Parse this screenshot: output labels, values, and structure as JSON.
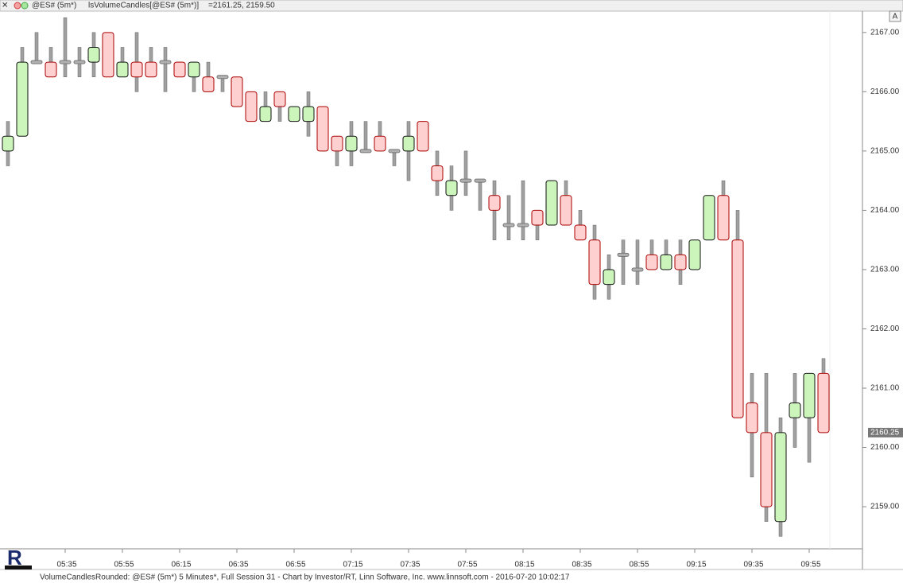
{
  "header": {
    "symbol": "@ES# (5m*)",
    "study": "lsVolumeCandles[@ES# (5m*)]",
    "values": "=2161.25, 2159.50",
    "button": "A"
  },
  "footer": "VolumeCandlesRounded: @ES# (5m*) 5 Minutes*, Full Session 31 - Chart by Investor/RT, Linn Software, Inc. www.linnsoft.com - 2016-07-20 10:02:17",
  "chart_data": {
    "type": "candlestick",
    "categories": [
      null,
      null,
      null,
      null,
      "05:35",
      null,
      null,
      null,
      "05:55",
      null,
      null,
      null,
      "06:15",
      null,
      null,
      null,
      "06:35",
      null,
      null,
      null,
      "06:55",
      null,
      null,
      null,
      "07:15",
      null,
      null,
      null,
      "07:35",
      null,
      null,
      null,
      "07:55",
      null,
      null,
      null,
      "08:15",
      null,
      null,
      null,
      "08:35",
      null,
      null,
      null,
      "08:55",
      null,
      null,
      null,
      "09:15",
      null,
      null,
      null,
      "09:35",
      null,
      null,
      null,
      "09:55",
      null
    ],
    "open": [
      2165,
      2165.25,
      2166.5,
      2166.5,
      2166.5,
      2166.5,
      2166.5,
      2167,
      2166.25,
      2166.5,
      2166.5,
      2166.5,
      2166.5,
      2166.25,
      2166.25,
      2166.25,
      2166.25,
      2166,
      2165.5,
      2166,
      2165.5,
      2165.5,
      2165.75,
      2165.25,
      2165,
      2165,
      2165.25,
      2165,
      2165,
      2165.5,
      2164.75,
      2164.25,
      2164.5,
      2164.5,
      2164.25,
      2163.75,
      2163.75,
      2164,
      2163.75,
      2164.25,
      2163.75,
      2163.5,
      2162.75,
      2163.25,
      2163,
      2163.25,
      2163,
      2163.25,
      2163,
      2163.5,
      2164.25,
      2163.5,
      2160.75,
      2160.25,
      2158.75,
      2160.5,
      2160.5,
      2161.25
    ],
    "high": [
      2165.5,
      2166.75,
      2167,
      2166.75,
      2167.25,
      2166.75,
      2167,
      2167,
      2166.75,
      2167,
      2166.75,
      2166.75,
      2166.5,
      2166.5,
      2166.5,
      2166.25,
      2166.25,
      2166,
      2166,
      2166,
      2165.75,
      2166,
      2165.75,
      2165.25,
      2165.5,
      2165.5,
      2165.5,
      2165,
      2165.5,
      2165.5,
      2165,
      2164.75,
      2165,
      2164.5,
      2164.5,
      2164.25,
      2164.5,
      2164,
      2164.5,
      2164.5,
      2164,
      2163.75,
      2163.25,
      2163.5,
      2163.5,
      2163.5,
      2163.5,
      2163.5,
      2163.5,
      2164.25,
      2164.5,
      2164,
      2161.25,
      2161.25,
      2160.5,
      2161.25,
      2161.25,
      2161.5
    ],
    "low": [
      2164.75,
      2165.25,
      2166.5,
      2166.25,
      2166.25,
      2166.25,
      2166.25,
      2166.25,
      2166.25,
      2166,
      2166.25,
      2166,
      2166.25,
      2166,
      2166,
      2166,
      2165.75,
      2165.5,
      2165.5,
      2165.5,
      2165.5,
      2165.25,
      2165,
      2164.75,
      2164.75,
      2165,
      2165,
      2164.75,
      2164.5,
      2165,
      2164.25,
      2164,
      2164.25,
      2164,
      2163.5,
      2163.5,
      2163.5,
      2163.5,
      2163.75,
      2163.75,
      2163.5,
      2162.5,
      2162.5,
      2162.75,
      2162.75,
      2163,
      2163,
      2162.75,
      2163,
      2163.5,
      2163.5,
      2160.5,
      2159.5,
      2158.75,
      2158.5,
      2160,
      2159.75,
      2160.25
    ],
    "close": [
      2165.25,
      2166.5,
      2166.5,
      2166.25,
      2166.5,
      2166.5,
      2166.75,
      2166.25,
      2166.5,
      2166.25,
      2166.25,
      2166.5,
      2166.25,
      2166.5,
      2166,
      2166.25,
      2165.75,
      2165.5,
      2165.75,
      2165.75,
      2165.75,
      2165.75,
      2165,
      2165,
      2165.25,
      2165,
      2165,
      2165,
      2165.25,
      2165,
      2164.5,
      2164.5,
      2164.5,
      2164.5,
      2164,
      2163.75,
      2163.75,
      2163.75,
      2164.5,
      2163.75,
      2163.5,
      2162.75,
      2163,
      2163.25,
      2163,
      2163,
      2163.25,
      2163,
      2163.5,
      2164.25,
      2163.5,
      2160.5,
      2160.25,
      2159,
      2160.25,
      2160.75,
      2161.25,
      2160.25
    ],
    "up_color": "#ccf5bb",
    "down_color": "#ffd0d0",
    "doji_color": "#b0b0b0",
    "ylim": [
      2158.29,
      2167.36
    ],
    "yticks": [
      {
        "value": 2159,
        "label": "2159.00"
      },
      {
        "value": 2160,
        "label": "2160.00"
      },
      {
        "value": 2161,
        "label": "2161.00"
      },
      {
        "value": 2162,
        "label": "2162.00"
      },
      {
        "value": 2163,
        "label": "2163.00"
      },
      {
        "value": 2164,
        "label": "2164.00"
      },
      {
        "value": 2165,
        "label": "2165.00"
      },
      {
        "value": 2166,
        "label": "2166.00"
      },
      {
        "value": 2167,
        "label": "2167.00"
      }
    ],
    "last_price": 2160.25
  }
}
